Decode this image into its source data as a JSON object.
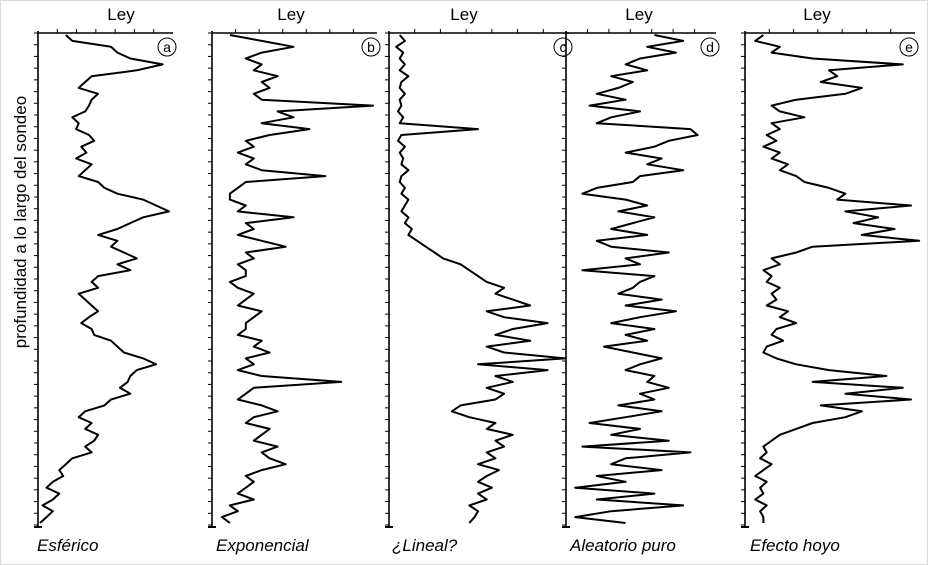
{
  "ylabel": "profundidad a lo largo del sondeo",
  "colors": {
    "line": "#000000",
    "axis": "#000000"
  },
  "chart_data": [
    {
      "type": "line",
      "id": "a",
      "xlabel": "Ley",
      "caption": "Esférico",
      "x_at_depth": [
        0.2,
        0.25,
        0.55,
        0.6,
        0.7,
        0.95,
        0.75,
        0.4,
        0.35,
        0.3,
        0.45,
        0.4,
        0.38,
        0.35,
        0.25,
        0.3,
        0.28,
        0.38,
        0.42,
        0.32,
        0.36,
        0.28,
        0.4,
        0.35,
        0.3,
        0.45,
        0.5,
        0.6,
        0.8,
        0.9,
        1.0,
        0.8,
        0.7,
        0.6,
        0.45,
        0.6,
        0.55,
        0.65,
        0.75,
        0.6,
        0.7,
        0.45,
        0.4,
        0.45,
        0.3,
        0.35,
        0.4,
        0.45,
        0.38,
        0.32,
        0.4,
        0.42,
        0.55,
        0.6,
        0.65,
        0.8,
        0.9,
        0.75,
        0.7,
        0.68,
        0.62,
        0.7,
        0.55,
        0.5,
        0.35,
        0.3,
        0.4,
        0.35,
        0.45,
        0.42,
        0.35,
        0.4,
        0.25,
        0.2,
        0.15,
        0.18,
        0.1,
        0.05,
        0.15,
        0.1,
        0.02,
        0.1,
        0.05,
        0.0
      ]
    },
    {
      "type": "line",
      "id": "b",
      "xlabel": "Ley",
      "caption": "Exponencial",
      "x_at_depth": [
        0.1,
        0.3,
        0.5,
        0.3,
        0.2,
        0.3,
        0.25,
        0.4,
        0.3,
        0.35,
        0.25,
        0.3,
        1.0,
        0.4,
        0.5,
        0.3,
        0.6,
        0.35,
        0.2,
        0.25,
        0.15,
        0.25,
        0.2,
        0.3,
        0.7,
        0.2,
        0.15,
        0.1,
        0.1,
        0.2,
        0.15,
        0.5,
        0.2,
        0.25,
        0.15,
        0.3,
        0.45,
        0.2,
        0.25,
        0.15,
        0.2,
        0.2,
        0.1,
        0.15,
        0.25,
        0.2,
        0.15,
        0.3,
        0.25,
        0.2,
        0.2,
        0.15,
        0.3,
        0.25,
        0.35,
        0.2,
        0.25,
        0.15,
        0.3,
        0.8,
        0.25,
        0.2,
        0.15,
        0.3,
        0.4,
        0.25,
        0.2,
        0.35,
        0.3,
        0.25,
        0.4,
        0.3,
        0.35,
        0.45,
        0.3,
        0.2,
        0.25,
        0.2,
        0.15,
        0.25,
        0.1,
        0.15,
        0.05,
        0.1
      ]
    },
    {
      "type": "line",
      "id": "c",
      "xlabel": "Ley",
      "caption": "¿Lineal?",
      "x_at_depth": [
        0.05,
        0.08,
        0.03,
        0.07,
        0.05,
        0.08,
        0.05,
        0.1,
        0.06,
        0.05,
        0.08,
        0.05,
        0.06,
        0.04,
        0.07,
        0.05,
        0.5,
        0.06,
        0.04,
        0.08,
        0.05,
        0.07,
        0.06,
        0.1,
        0.06,
        0.05,
        0.08,
        0.06,
        0.1,
        0.08,
        0.06,
        0.1,
        0.08,
        0.12,
        0.1,
        0.15,
        0.2,
        0.25,
        0.3,
        0.4,
        0.45,
        0.5,
        0.55,
        0.65,
        0.6,
        0.7,
        0.8,
        0.55,
        0.65,
        0.9,
        0.7,
        0.6,
        0.8,
        0.55,
        0.65,
        1.0,
        0.5,
        0.9,
        0.6,
        0.7,
        0.55,
        0.65,
        0.6,
        0.4,
        0.35,
        0.45,
        0.6,
        0.55,
        0.7,
        0.6,
        0.65,
        0.55,
        0.6,
        0.5,
        0.62,
        0.55,
        0.5,
        0.58,
        0.5,
        0.55,
        0.45,
        0.5,
        0.48,
        0.45
      ]
    },
    {
      "type": "line",
      "id": "d",
      "xlabel": "Ley",
      "caption": "Aleatorio puro",
      "x_at_depth": [
        0.6,
        0.8,
        0.55,
        0.75,
        0.5,
        0.4,
        0.55,
        0.3,
        0.45,
        0.35,
        0.2,
        0.4,
        0.15,
        0.5,
        0.3,
        0.2,
        0.85,
        0.9,
        0.7,
        0.6,
        0.4,
        0.65,
        0.55,
        0.8,
        0.5,
        0.45,
        0.2,
        0.1,
        0.4,
        0.55,
        0.35,
        0.6,
        0.45,
        0.3,
        0.55,
        0.2,
        0.3,
        0.7,
        0.4,
        0.5,
        0.1,
        0.6,
        0.5,
        0.45,
        0.35,
        0.65,
        0.4,
        0.75,
        0.5,
        0.3,
        0.6,
        0.4,
        0.55,
        0.25,
        0.45,
        0.65,
        0.5,
        0.4,
        0.6,
        0.55,
        0.7,
        0.5,
        0.6,
        0.35,
        0.65,
        0.4,
        0.15,
        0.5,
        0.3,
        0.7,
        0.1,
        0.85,
        0.4,
        0.3,
        0.65,
        0.2,
        0.4,
        0.05,
        0.6,
        0.2,
        0.8,
        0.3,
        0.05,
        0.4
      ]
    },
    {
      "type": "line",
      "id": "e",
      "xlabel": "Ley",
      "caption": "Efecto hoyo",
      "x_at_depth": [
        0.1,
        0.05,
        0.2,
        0.15,
        0.4,
        0.95,
        0.5,
        0.55,
        0.45,
        0.7,
        0.6,
        0.3,
        0.15,
        0.2,
        0.35,
        0.15,
        0.2,
        0.12,
        0.18,
        0.1,
        0.2,
        0.15,
        0.25,
        0.2,
        0.3,
        0.35,
        0.5,
        0.6,
        0.55,
        1.0,
        0.6,
        0.8,
        0.65,
        0.9,
        0.7,
        1.05,
        0.4,
        0.3,
        0.15,
        0.2,
        0.1,
        0.15,
        0.12,
        0.2,
        0.15,
        0.18,
        0.12,
        0.25,
        0.2,
        0.3,
        0.18,
        0.15,
        0.22,
        0.12,
        0.1,
        0.18,
        0.3,
        0.5,
        0.85,
        0.4,
        0.95,
        0.6,
        1.0,
        0.45,
        0.7,
        0.6,
        0.4,
        0.3,
        0.2,
        0.15,
        0.1,
        0.12,
        0.08,
        0.15,
        0.1,
        0.05,
        0.12,
        0.08,
        0.1,
        0.05,
        0.12,
        0.08,
        0.1,
        0.1
      ]
    }
  ]
}
